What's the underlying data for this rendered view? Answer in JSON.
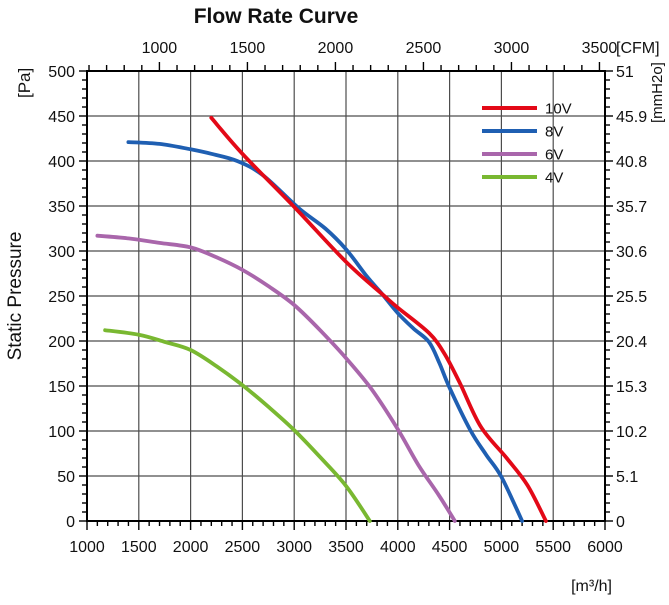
{
  "title": "Flow Rate Curve",
  "chart_data": {
    "type": "line",
    "title": "Flow Rate Curve",
    "axes": {
      "bottom": {
        "unit_label": "[m³/h]",
        "range": [
          1000,
          6000
        ],
        "major_ticks": [
          1000,
          1500,
          2000,
          2500,
          3000,
          3500,
          4000,
          4500,
          5000,
          5500,
          6000
        ],
        "tick_labels": [
          "1000",
          "1500",
          "2000",
          "2500",
          "3000",
          "3500",
          "4000",
          "4500",
          "5000",
          "5500",
          "6000"
        ],
        "minor_step": 100
      },
      "top": {
        "unit_label": "[CFM]",
        "major_ticks": [
          1000,
          1500,
          2000,
          2500,
          3000,
          3500
        ],
        "tick_labels": [
          "1000",
          "1500",
          "2000",
          "2500",
          "3000",
          "3500"
        ],
        "minor_step": 100,
        "minor_range": [
          600,
          3500
        ],
        "cfm_to_m3h": 1.699
      },
      "left": {
        "axis_label": "Static Pressure",
        "unit_label": "[Pa]",
        "range": [
          0,
          500
        ],
        "major_ticks": [
          0,
          50,
          100,
          150,
          200,
          250,
          300,
          350,
          400,
          450,
          500
        ],
        "tick_labels": [
          "0",
          "50",
          "100",
          "150",
          "200",
          "250",
          "300",
          "350",
          "400",
          "450",
          "500"
        ],
        "minor_step": 10
      },
      "right": {
        "unit_label": "[mmH2o]",
        "tick_pa_positions": [
          0,
          50,
          100,
          150,
          200,
          250,
          300,
          350,
          400,
          450,
          500
        ],
        "tick_labels": [
          "0",
          "5.1",
          "10.2",
          "15.3",
          "20.4",
          "25.5",
          "30.6",
          "35.7",
          "40.8",
          "45.9",
          "51"
        ],
        "minor_step_pa": 10
      }
    },
    "grid": {
      "vertical_m3h": [
        1500,
        2000,
        2500,
        3000,
        3500,
        4000,
        4500,
        5000,
        5500
      ],
      "horizontal_pa": [
        50,
        100,
        150,
        200,
        250,
        300,
        350,
        400,
        450
      ]
    },
    "legend": {
      "position": "top-right",
      "entries": [
        "10V",
        "8V",
        "6V",
        "4V"
      ]
    },
    "series": [
      {
        "name": "10V",
        "color": "#e30917",
        "points": [
          [
            2200,
            448
          ],
          [
            2500,
            408
          ],
          [
            3000,
            349
          ],
          [
            3500,
            288
          ],
          [
            3850,
            252
          ],
          [
            4000,
            237
          ],
          [
            4300,
            209
          ],
          [
            4450,
            186
          ],
          [
            4600,
            153
          ],
          [
            4800,
            105
          ],
          [
            5050,
            70
          ],
          [
            5250,
            40
          ],
          [
            5430,
            0
          ]
        ]
      },
      {
        "name": "8V",
        "color": "#1f5fb2",
        "points": [
          [
            1400,
            421
          ],
          [
            1700,
            419
          ],
          [
            2000,
            413
          ],
          [
            2200,
            408
          ],
          [
            2450,
            400
          ],
          [
            2700,
            384
          ],
          [
            3040,
            348
          ],
          [
            3300,
            325
          ],
          [
            3500,
            302
          ],
          [
            3700,
            272
          ],
          [
            3850,
            252
          ],
          [
            4000,
            231
          ],
          [
            4150,
            214
          ],
          [
            4300,
            199
          ],
          [
            4400,
            176
          ],
          [
            4500,
            148
          ],
          [
            4700,
            101
          ],
          [
            4850,
            74
          ],
          [
            5000,
            49
          ],
          [
            5200,
            0
          ]
        ]
      },
      {
        "name": "6V",
        "color": "#a966ab",
        "points": [
          [
            1100,
            317
          ],
          [
            1400,
            314
          ],
          [
            1700,
            309
          ],
          [
            2000,
            304
          ],
          [
            2250,
            293
          ],
          [
            2500,
            279
          ],
          [
            2750,
            261
          ],
          [
            3000,
            240
          ],
          [
            3250,
            212
          ],
          [
            3500,
            181
          ],
          [
            3750,
            146
          ],
          [
            4000,
            102
          ],
          [
            4200,
            62
          ],
          [
            4400,
            28
          ],
          [
            4550,
            0
          ]
        ]
      },
      {
        "name": "4V",
        "color": "#79b831",
        "points": [
          [
            1175,
            212
          ],
          [
            1500,
            207
          ],
          [
            1750,
            199
          ],
          [
            2000,
            190
          ],
          [
            2250,
            172
          ],
          [
            2500,
            151
          ],
          [
            2750,
            127
          ],
          [
            3000,
            101
          ],
          [
            3250,
            71
          ],
          [
            3500,
            39
          ],
          [
            3730,
            0
          ]
        ]
      }
    ]
  }
}
